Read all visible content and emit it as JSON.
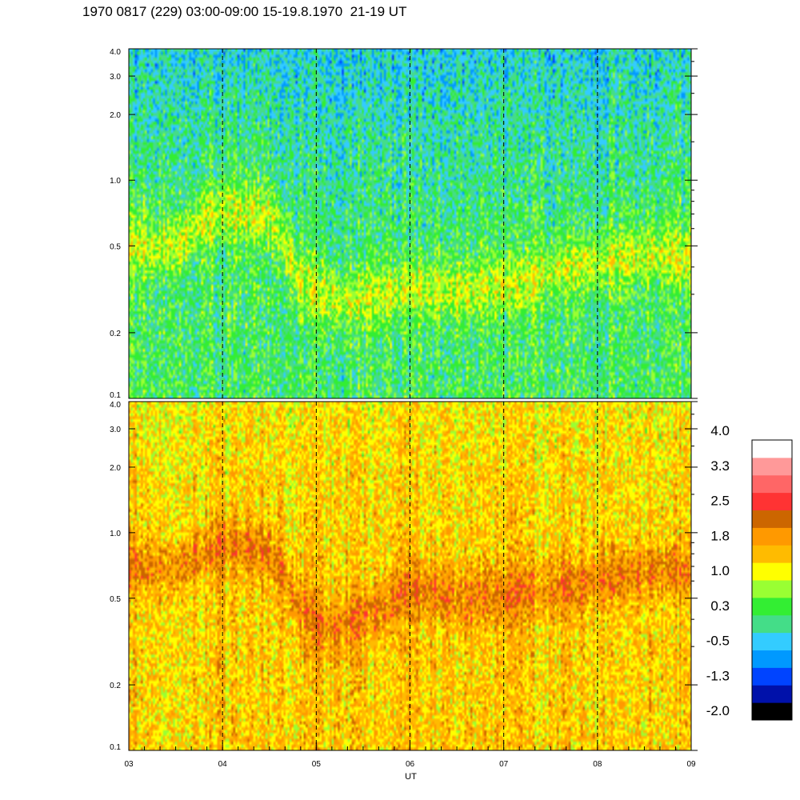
{
  "page": {
    "title": "1970 0817 (229) 03:00-09:00 15-19.8.1970  21-19 UT"
  },
  "chart_data": [
    {
      "type": "heatmap",
      "panel": "upper",
      "x_range": [
        "03:00",
        "09:00"
      ],
      "ylim": [
        0.1,
        4.0
      ],
      "y_scale": "log",
      "y_ticks": [
        "0.1",
        "0.2",
        "0.5",
        "1.0",
        "2.0",
        "3.0",
        "4.0"
      ],
      "y_tick_values": [
        0.1,
        0.2,
        0.5,
        1.0,
        2.0,
        3.0,
        4.0
      ],
      "base_level": 0.3,
      "band": {
        "level": 1.0,
        "center": [
          [
            3.0,
            0.5
          ],
          [
            3.5,
            0.5
          ],
          [
            4.0,
            0.72
          ],
          [
            4.5,
            0.68
          ],
          [
            4.8,
            0.35
          ],
          [
            5.2,
            0.27
          ],
          [
            5.7,
            0.3
          ],
          [
            6.0,
            0.32
          ],
          [
            6.5,
            0.31
          ],
          [
            7.0,
            0.33
          ],
          [
            7.5,
            0.38
          ],
          [
            8.0,
            0.42
          ],
          [
            8.5,
            0.45
          ],
          [
            9.0,
            0.45
          ]
        ]
      },
      "top_level": -0.5,
      "day_markers": [
        "04",
        "05",
        "06",
        "07",
        "08"
      ]
    },
    {
      "type": "heatmap",
      "panel": "lower",
      "x_range": [
        "03:00",
        "09:00"
      ],
      "ylim": [
        0.1,
        4.0
      ],
      "y_scale": "log",
      "y_ticks": [
        "0.1",
        "0.2",
        "0.5",
        "1.0",
        "2.0",
        "3.0",
        "4.0"
      ],
      "y_tick_values": [
        0.1,
        0.2,
        0.5,
        1.0,
        2.0,
        3.0,
        4.0
      ],
      "base_level": 1.5,
      "band": {
        "level": 2.1,
        "center": [
          [
            3.0,
            0.72
          ],
          [
            3.5,
            0.68
          ],
          [
            4.0,
            0.88
          ],
          [
            4.5,
            0.82
          ],
          [
            4.8,
            0.45
          ],
          [
            5.2,
            0.35
          ],
          [
            5.7,
            0.45
          ],
          [
            6.0,
            0.55
          ],
          [
            6.5,
            0.5
          ],
          [
            7.0,
            0.52
          ],
          [
            7.5,
            0.55
          ],
          [
            8.0,
            0.6
          ],
          [
            8.5,
            0.65
          ],
          [
            9.0,
            0.68
          ]
        ]
      },
      "top_level": 1.2,
      "day_markers": [
        "04",
        "05",
        "06",
        "07",
        "08"
      ]
    }
  ],
  "x_axis": {
    "label": "UT",
    "ticks": [
      "03",
      "04",
      "05",
      "06",
      "07",
      "08",
      "09"
    ]
  },
  "colorbar": {
    "labels": [
      "4.0",
      "3.3",
      "2.5",
      "1.8",
      "1.0",
      "0.3",
      "-0.5",
      "-1.3",
      "-2.0"
    ],
    "range": [
      -2.0,
      4.0
    ],
    "colors_bottom_to_top": [
      "#000000",
      "#0011aa",
      "#0044ff",
      "#0099ff",
      "#33ccff",
      "#44dd88",
      "#33ee33",
      "#99ff33",
      "#ffff00",
      "#ffbb00",
      "#ff9900",
      "#cc6600",
      "#ff3333",
      "#ff6666",
      "#ff9999",
      "#ffffff"
    ]
  }
}
